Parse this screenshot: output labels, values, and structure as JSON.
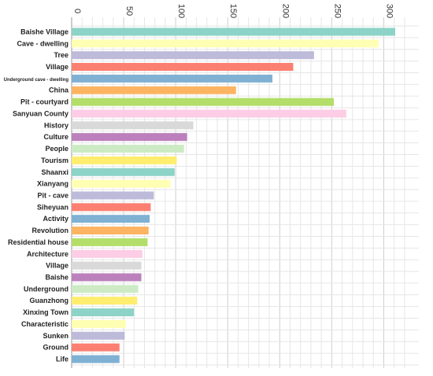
{
  "chart_data": {
    "type": "bar",
    "orientation": "horizontal",
    "x_axis_position": "top",
    "grid": true,
    "xlim": [
      0,
      320
    ],
    "ticks": [
      0,
      50,
      100,
      150,
      200,
      250,
      300
    ],
    "categories": [
      "Baishe Village",
      "Cave - dwelling",
      "Tree",
      "Village",
      "Underground cave - dwelling",
      "China",
      "Pit - courtyard",
      "Sanyuan County",
      "History",
      "Culture",
      "People",
      "Tourism",
      "Shaanxi",
      "Xianyang",
      "Pit - cave",
      "Siheyuan",
      "Activity",
      "Revolution",
      "Residential house",
      "Architecture",
      "Village",
      "Baishe",
      "Underground",
      "Guanzhong",
      "Xinxing Town",
      "Characteristic",
      "Sunken",
      "Ground",
      "Life"
    ],
    "values": [
      311,
      295,
      233,
      213,
      193,
      158,
      252,
      264,
      117,
      111,
      108,
      101,
      99,
      95,
      79,
      76,
      75,
      74,
      73,
      68,
      67,
      67,
      64,
      63,
      60,
      52,
      51,
      46,
      46
    ],
    "colors": [
      "#8dd3c7",
      "#ffffb3",
      "#bebada",
      "#fb8072",
      "#80b1d3",
      "#fdb462",
      "#b3de69",
      "#fccde5",
      "#d9d9d9",
      "#bc80bd",
      "#ccebc5",
      "#ffed6f",
      "#8dd3c7",
      "#ffffb3",
      "#bebada",
      "#fb8072",
      "#80b1d3",
      "#fdb462",
      "#b3de69",
      "#fccde5",
      "#d9d9d9",
      "#bc80bd",
      "#ccebc5",
      "#ffed6f",
      "#8dd3c7",
      "#ffffb3",
      "#bebada",
      "#fb8072",
      "#80b1d3"
    ],
    "small_label_category_index": 4
  }
}
